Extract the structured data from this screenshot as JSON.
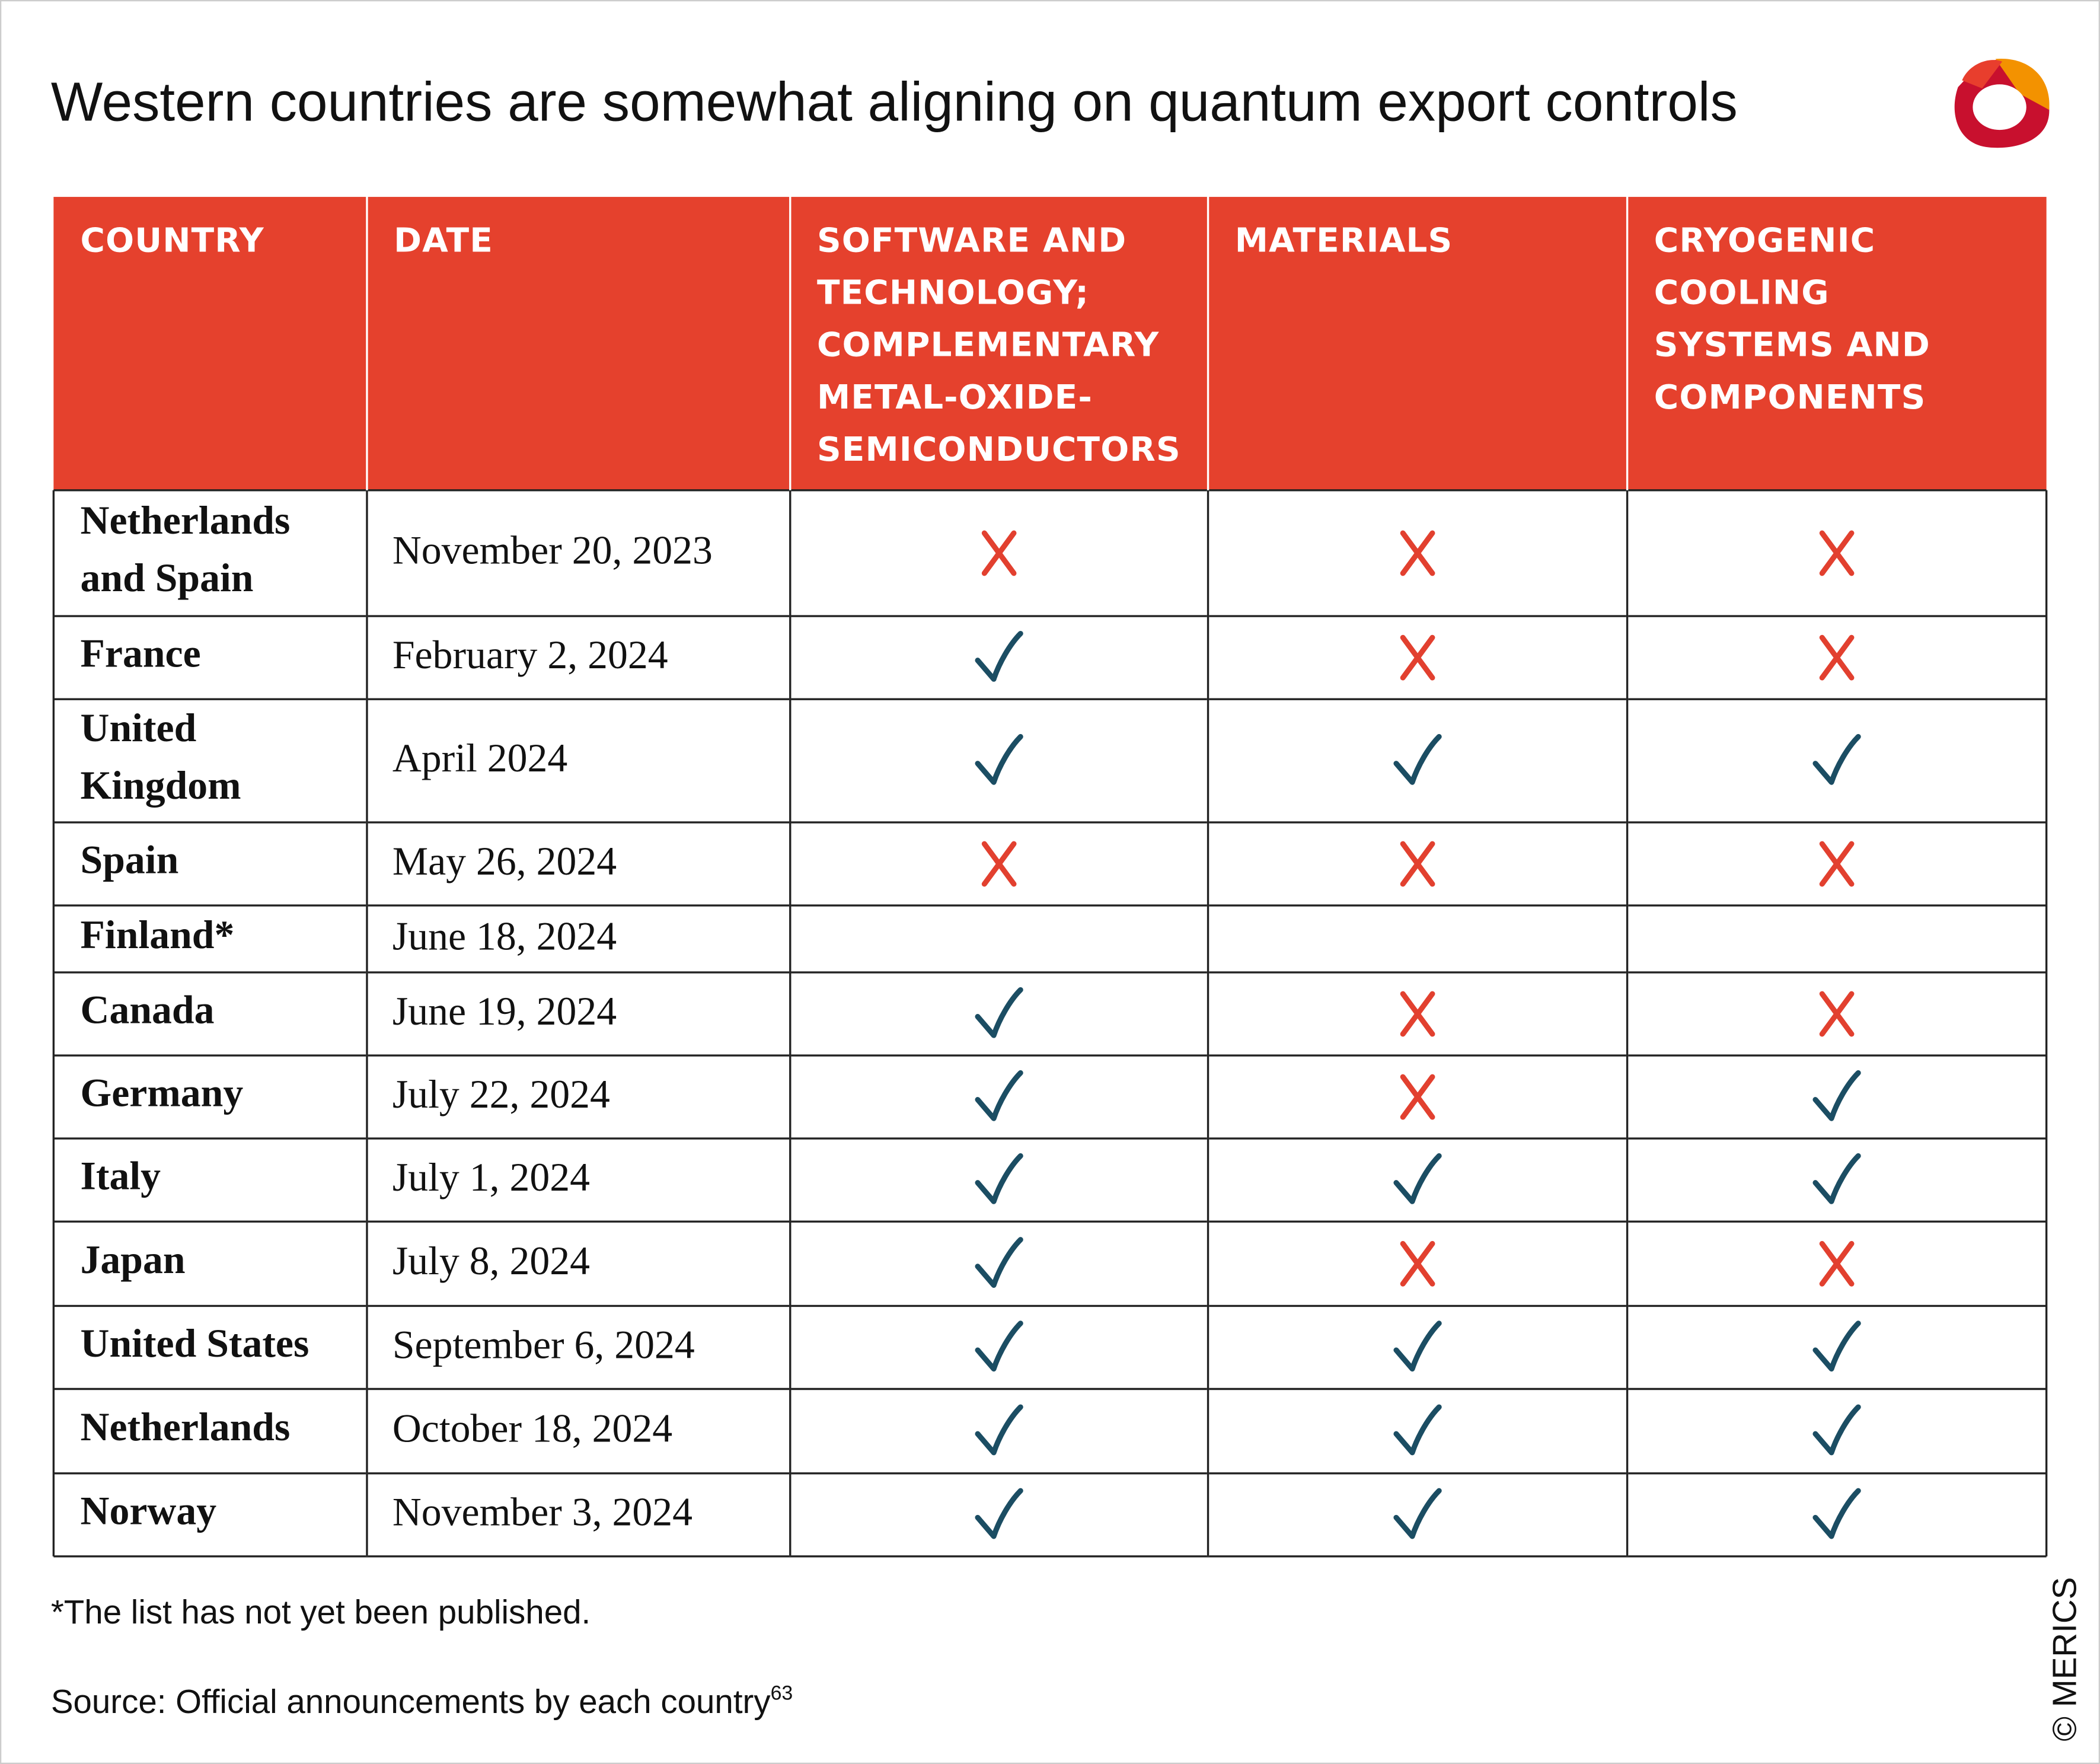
{
  "title": "Western countries are somewhat aligning on quantum export controls",
  "table": {
    "header": [
      [
        "COUNTRY"
      ],
      [
        "DATE"
      ],
      [
        "SOFTWARE AND",
        "TECHNOLOGY;",
        "COMPLEMENTARY",
        "METAL-OXIDE-",
        "SEMICONDUCTORS"
      ],
      [
        "MATERIALS"
      ],
      [
        "CRYOGENIC",
        "COOLING",
        "SYSTEMS AND",
        "COMPONENTS"
      ]
    ],
    "rows": [
      {
        "country": [
          "Netherlands",
          "and Spain"
        ],
        "date": "November 20, 2023",
        "status": [
          "no",
          "no",
          "no"
        ]
      },
      {
        "country": [
          "France"
        ],
        "date": "February 2, 2024",
        "status": [
          "yes",
          "no",
          "no"
        ]
      },
      {
        "country": [
          "United",
          "Kingdom"
        ],
        "date": "April 2024",
        "status": [
          "yes",
          "yes",
          "yes"
        ]
      },
      {
        "country": [
          "Spain"
        ],
        "date": "May 26, 2024",
        "status": [
          "no",
          "no",
          "no"
        ]
      },
      {
        "country": [
          "Finland*"
        ],
        "date": "June 18, 2024",
        "status": [
          null,
          null,
          null
        ]
      },
      {
        "country": [
          "Canada"
        ],
        "date": "June 19, 2024",
        "status": [
          "yes",
          "no",
          "no"
        ]
      },
      {
        "country": [
          "Germany"
        ],
        "date": "July 22, 2024",
        "status": [
          "yes",
          "no",
          "yes"
        ]
      },
      {
        "country": [
          "Italy"
        ],
        "date": "July 1, 2024",
        "status": [
          "yes",
          "yes",
          "yes"
        ]
      },
      {
        "country": [
          "Japan"
        ],
        "date": "July 8, 2024",
        "status": [
          "yes",
          "no",
          "no"
        ]
      },
      {
        "country": [
          "United States"
        ],
        "date": "September 6, 2024",
        "status": [
          "yes",
          "yes",
          "yes"
        ]
      },
      {
        "country": [
          "Netherlands"
        ],
        "date": "October 18, 2024",
        "status": [
          "yes",
          "yes",
          "yes"
        ]
      },
      {
        "country": [
          "Norway"
        ],
        "date": "November 3, 2024",
        "status": [
          "yes",
          "yes",
          "yes"
        ]
      }
    ]
  },
  "footnote": "*The list has not yet been published.",
  "source": {
    "text": "Source: Official announcements by each country",
    "ref": "63"
  },
  "copyright": "© MERICS"
}
